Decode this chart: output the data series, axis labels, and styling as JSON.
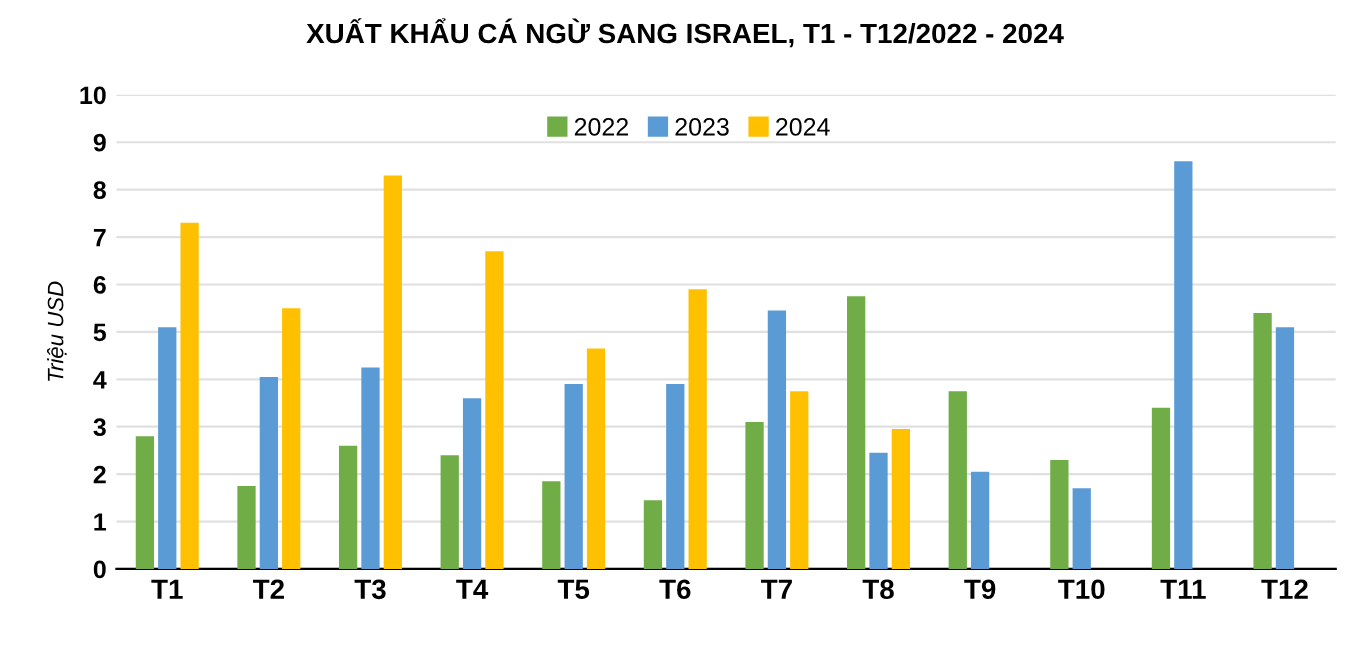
{
  "chart_data": {
    "type": "bar",
    "title": "XUẤT KHẨU CÁ NGỪ SANG ISRAEL, T1 - T12/2022 - 2024",
    "ylabel": "Triệu USD",
    "categories": [
      "T1",
      "T2",
      "T3",
      "T4",
      "T5",
      "T6",
      "T7",
      "T8",
      "T9",
      "T10",
      "T11",
      "T12"
    ],
    "series": [
      {
        "name": "2022",
        "color": "#70ad47",
        "values": [
          2.8,
          1.75,
          2.6,
          2.4,
          1.85,
          1.45,
          3.1,
          5.75,
          3.75,
          2.3,
          3.4,
          5.4
        ]
      },
      {
        "name": "2023",
        "color": "#5b9bd5",
        "values": [
          5.1,
          4.05,
          4.25,
          3.6,
          3.9,
          3.9,
          5.45,
          2.45,
          2.05,
          1.7,
          8.6,
          5.1
        ]
      },
      {
        "name": "2024",
        "color": "#ffc000",
        "values": [
          7.3,
          5.5,
          8.3,
          6.7,
          4.65,
          5.9,
          3.75,
          2.95,
          null,
          null,
          null,
          null
        ]
      }
    ],
    "ylim": [
      0,
      10
    ],
    "yticks": [
      0,
      1,
      2,
      3,
      4,
      5,
      6,
      7,
      8,
      9,
      10
    ],
    "grid": "y",
    "legend": "top"
  }
}
